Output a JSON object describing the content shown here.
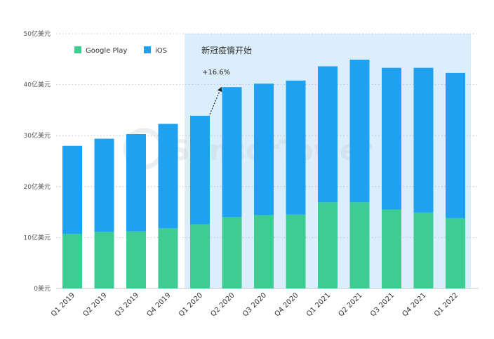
{
  "chart_data": {
    "type": "bar",
    "stacked": true,
    "categories": [
      "Q1 2019",
      "Q2 2019",
      "Q3 2019",
      "Q4 2019",
      "Q1 2020",
      "Q2 2020",
      "Q3 2020",
      "Q4 2020",
      "Q1 2021",
      "Q2 2021",
      "Q3 2021",
      "Q4 2021",
      "Q1 2022"
    ],
    "series": [
      {
        "name": "Google Play",
        "color": "#3dcc91",
        "values": [
          10.7,
          11.1,
          11.2,
          11.8,
          12.6,
          14.0,
          14.4,
          14.5,
          16.9,
          16.9,
          15.5,
          14.9,
          13.8
        ]
      },
      {
        "name": "iOS",
        "color": "#1ea1f1",
        "values": [
          17.3,
          18.3,
          19.1,
          20.5,
          21.3,
          25.5,
          25.8,
          26.3,
          26.7,
          28.0,
          27.8,
          28.4,
          28.5
        ]
      }
    ],
    "y_ticks": [
      {
        "value": 0,
        "label": "0美元"
      },
      {
        "value": 10,
        "label": "10亿美元"
      },
      {
        "value": 20,
        "label": "20亿美元"
      },
      {
        "value": 30,
        "label": "30亿美元"
      },
      {
        "value": 40,
        "label": "40亿美元"
      },
      {
        "value": 50,
        "label": "50亿美元"
      }
    ],
    "ylim": [
      0,
      50
    ],
    "grid": true,
    "legend": "top-left",
    "shaded_region": {
      "from_category": "Q1 2020",
      "to_category": "Q1 2022",
      "label": "新冠疫情开始",
      "color": "#dbeefb"
    },
    "annotation": {
      "text": "+16.6%",
      "from_category": "Q1 2020",
      "to_category": "Q2 2020"
    },
    "watermark": "SensorTower"
  }
}
